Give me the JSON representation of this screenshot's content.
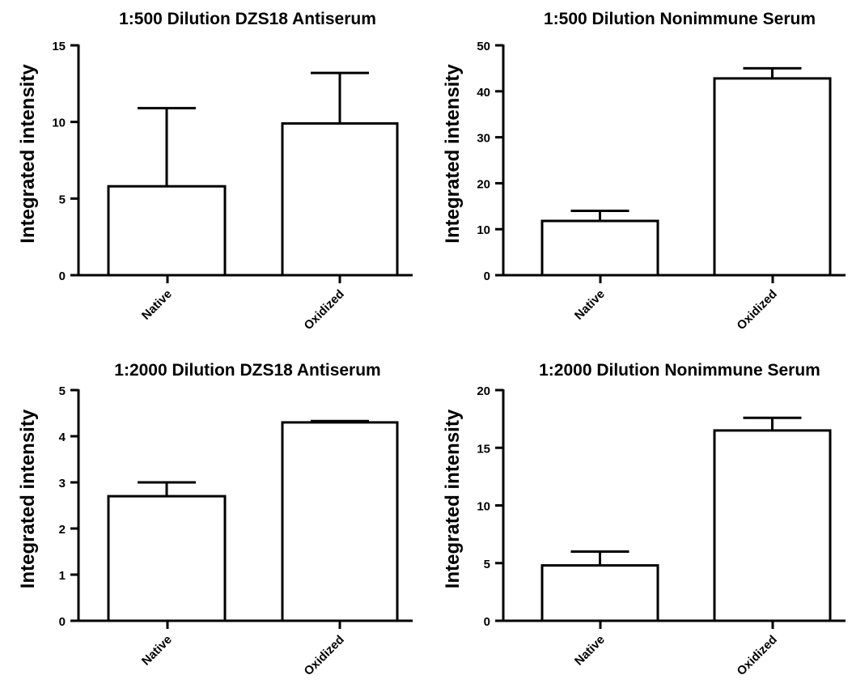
{
  "chart_data": [
    {
      "type": "bar",
      "title": "1:500 Dilution DZS18 Antiserum",
      "ylabel": "Integrated intensity",
      "categories": [
        "Native",
        "Oxidized"
      ],
      "values": [
        5.8,
        9.9
      ],
      "error_upper": [
        10.9,
        13.2
      ],
      "ylim": [
        0,
        15
      ],
      "yticks": [
        0,
        5,
        10,
        15
      ]
    },
    {
      "type": "bar",
      "title": "1:500 Dilution Nonimmune Serum",
      "ylabel": "Integrated intensity",
      "categories": [
        "Native",
        "Oxidized"
      ],
      "values": [
        11.8,
        42.8
      ],
      "error_upper": [
        14.0,
        45.0
      ],
      "ylim": [
        0,
        50
      ],
      "yticks": [
        0,
        10,
        20,
        30,
        40,
        50
      ]
    },
    {
      "type": "bar",
      "title": "1:2000 Dilution DZS18 Antiserum",
      "ylabel": "Integrated intensity",
      "categories": [
        "Native",
        "Oxidized"
      ],
      "values": [
        2.7,
        4.3
      ],
      "error_upper": [
        3.0,
        4.33
      ],
      "ylim": [
        0,
        5
      ],
      "yticks": [
        0,
        1,
        2,
        3,
        4,
        5
      ]
    },
    {
      "type": "bar",
      "title": "1:2000 Dilution Nonimmune Serum",
      "ylabel": "Integrated intensity",
      "categories": [
        "Native",
        "Oxidized"
      ],
      "values": [
        4.8,
        16.5
      ],
      "error_upper": [
        6.0,
        17.6
      ],
      "ylim": [
        0,
        20
      ],
      "yticks": [
        0,
        5,
        10,
        15,
        20
      ]
    }
  ]
}
